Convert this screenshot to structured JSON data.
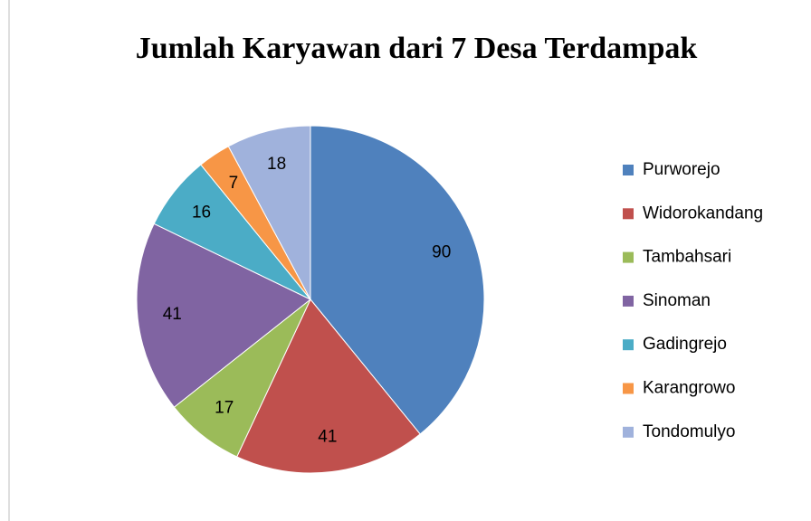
{
  "chart_data": {
    "type": "pie",
    "title": "Jumlah Karyawan dari 7 Desa Terdampak",
    "categories": [
      "Purworejo",
      "Widorokandang",
      "Tambahsari",
      "Sinoman",
      "Gadingrejo",
      "Karangrowo",
      "Tondomulyo"
    ],
    "values": [
      90,
      41,
      17,
      41,
      16,
      7,
      18
    ],
    "colors": [
      "#4f81bd",
      "#c0504d",
      "#9bbb59",
      "#8064a2",
      "#4bacc6",
      "#f79646",
      "#a0b2dc"
    ],
    "legend": "right"
  }
}
